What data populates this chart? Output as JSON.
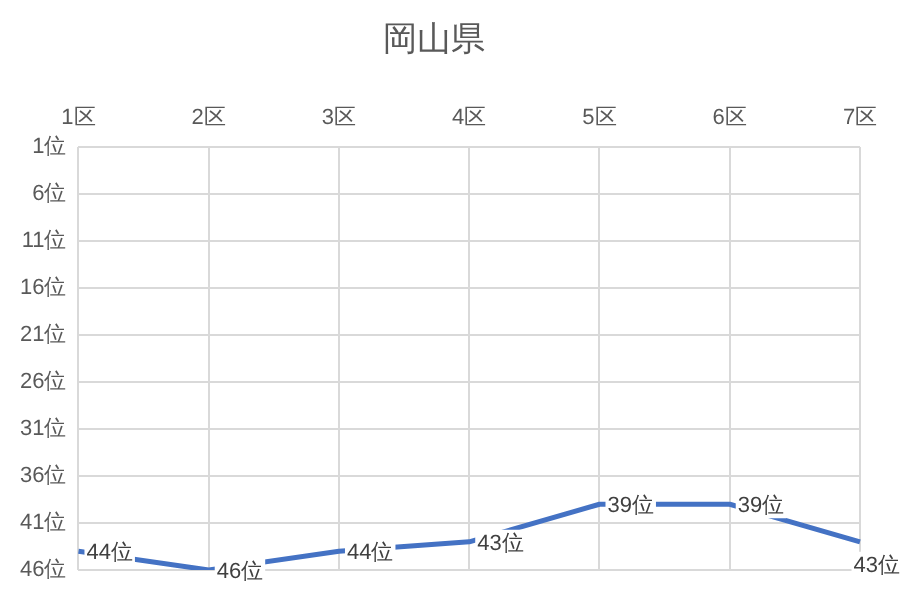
{
  "chart_data": {
    "type": "line",
    "title": "岡山県",
    "categories": [
      "1区",
      "2区",
      "3区",
      "4区",
      "5区",
      "6区",
      "7区"
    ],
    "series": [
      {
        "color": "#4472c4",
        "values": [
          44,
          46,
          44,
          43,
          39,
          39,
          43
        ],
        "value_labels": [
          "44位",
          "46位",
          "44位",
          "43位",
          "39位",
          "39位",
          "43位"
        ]
      }
    ],
    "ylim": [
      46,
      1
    ],
    "yticks": [
      {
        "value": 1,
        "label": "1位"
      },
      {
        "value": 6,
        "label": "6位"
      },
      {
        "value": 11,
        "label": "11位"
      },
      {
        "value": 16,
        "label": "16位"
      },
      {
        "value": 21,
        "label": "21位"
      },
      {
        "value": 26,
        "label": "26位"
      },
      {
        "value": 31,
        "label": "31位"
      },
      {
        "value": 36,
        "label": "36位"
      },
      {
        "value": 41,
        "label": "41位"
      },
      {
        "value": 46,
        "label": "46位"
      }
    ],
    "grid": true,
    "marker": "none",
    "line_style": "solid",
    "legend": false
  }
}
